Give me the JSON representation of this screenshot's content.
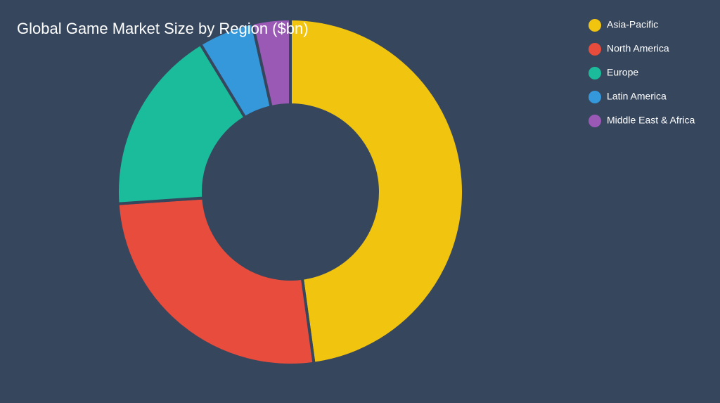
{
  "chart_data": {
    "type": "donut",
    "title": "Global Game Market Size by Region ($bn)",
    "categories": [
      "Asia-Pacific",
      "North America",
      "Europe",
      "Latin America",
      "Middle East & Africa"
    ],
    "values": [
      88,
      48,
      32,
      9.5,
      6.5
    ],
    "colors": [
      "#f1c40f",
      "#e74c3c",
      "#1abc9c",
      "#3498db",
      "#9b59b6"
    ],
    "legend": "top-right"
  }
}
